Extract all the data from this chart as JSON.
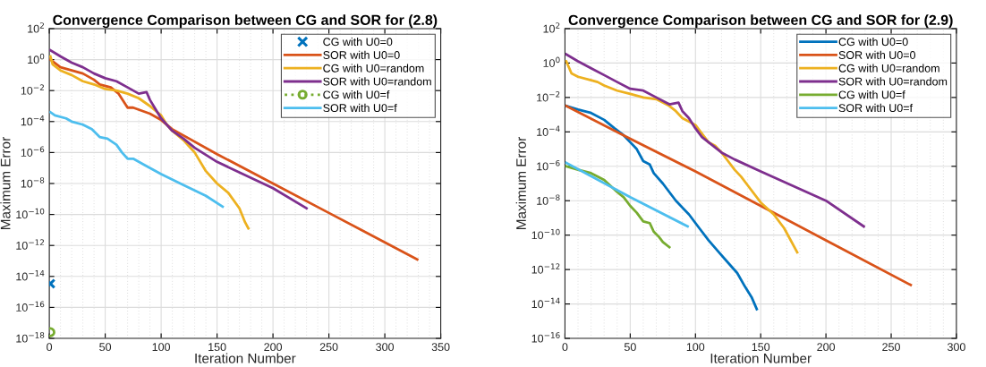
{
  "chart_data": [
    {
      "type": "line",
      "title": "Convergence Comparison between CG and SOR for (2.8)",
      "xlabel": "Iteration Number",
      "ylabel": "Maximum Error",
      "log": "y",
      "grid": true,
      "legend": "top right",
      "xlim": [
        0,
        350
      ],
      "xticks": [
        0,
        50,
        100,
        150,
        200,
        250,
        300,
        350
      ],
      "ylim": [
        1e-18,
        100
      ],
      "yticks": [
        {
          "value": 1e-18,
          "label": "10$^{−18}$"
        },
        {
          "value": 1e-16,
          "label": "10$^{−16}$"
        },
        {
          "value": 1e-14,
          "label": "10$^{−14}$"
        },
        {
          "value": 1e-12,
          "label": "10$^{−12}$"
        },
        {
          "value": 1e-10,
          "label": "10$^{−10}$"
        },
        {
          "value": 1e-08,
          "label": "10$^{−8}$"
        },
        {
          "value": 1e-06,
          "label": "10$^{−6}$"
        },
        {
          "value": 0.0001,
          "label": "10$^{−4}$"
        },
        {
          "value": 0.01,
          "label": "10$^{−2}$"
        },
        {
          "value": 1,
          "label": "10$^{0}$"
        },
        {
          "value": 100,
          "label": "10$^{2}$"
        }
      ],
      "series": [
        {
          "name": "CG with U0=0",
          "type": "scatter",
          "marker": "cross",
          "color": "#0072bd",
          "x": [
            1
          ],
          "values": [
            3.4e-15
          ]
        },
        {
          "name": "SOR with U0=0",
          "color": "#d95319",
          "x": [
            1,
            10,
            20,
            30,
            40,
            45,
            55,
            62,
            70,
            75,
            90,
            100,
            110,
            150,
            200,
            250,
            300,
            329
          ],
          "values": [
            1,
            0.32,
            0.2,
            0.126,
            0.05,
            0.025,
            0.016,
            0.0063,
            0.00079,
            0.00079,
            0.00032,
            0.000126,
            3.2e-05,
            7.9e-07,
            1e-08,
            1.26e-10,
            1.6e-12,
            1.26e-13
          ]
        },
        {
          "name": "CG with U0=random",
          "color": "#edb120",
          "x": [
            1,
            3,
            10,
            20,
            30,
            40,
            50,
            60,
            70,
            80,
            90,
            100,
            105,
            110,
            120,
            125,
            130,
            140,
            150,
            160,
            170,
            175,
            178
          ],
          "values": [
            1.6,
            0.5,
            0.2,
            0.1,
            0.04,
            0.025,
            0.0126,
            0.01,
            0.0063,
            0.0032,
            0.001,
            0.00025,
            6.3e-05,
            2.5e-05,
            6.3e-06,
            2.5e-06,
            1e-06,
            6.3e-08,
            1e-08,
            2.5e-09,
            2.5e-10,
            3.2e-11,
            1.26e-11
          ]
        },
        {
          "name": "SOR with U0=random",
          "color": "#7e2f8e",
          "x": [
            1,
            10,
            20,
            30,
            40,
            50,
            60,
            70,
            80,
            87,
            90,
            95,
            100,
            105,
            110,
            120,
            130,
            150,
            200,
            230
          ],
          "values": [
            4.0,
            1.6,
            0.63,
            0.32,
            0.126,
            0.063,
            0.04,
            0.016,
            0.0063,
            0.0079,
            0.0025,
            0.00063,
            0.00016,
            6.3e-05,
            2.5e-05,
            7.9e-06,
            2e-06,
            2.5e-07,
            5e-09,
            2.5e-10
          ]
        },
        {
          "name": "CG with U0=f",
          "marker": "circle",
          "line_style": "dotted",
          "color": "#77ac30",
          "x": [
            1
          ],
          "values": [
            2.5e-18
          ]
        },
        {
          "name": "SOR with U0=f",
          "color": "#4dbeee",
          "x": [
            1,
            5,
            15,
            20,
            30,
            38,
            45,
            52,
            60,
            65,
            70,
            75,
            85,
            100,
            120,
            140,
            155
          ],
          "values": [
            0.0004,
            0.00025,
            0.00016,
            0.0001,
            6.3e-05,
            3.2e-05,
            1e-05,
            7.9e-06,
            3.2e-06,
            1e-06,
            4e-07,
            4e-07,
            1.6e-07,
            4e-08,
            7.9e-09,
            1.6e-09,
            3.2e-10
          ]
        }
      ]
    },
    {
      "type": "line",
      "title": "Convergence Comparison between CG and SOR for (2.9)",
      "xlabel": "Iteration Number",
      "ylabel": "Maximum Error",
      "log": "y",
      "grid": true,
      "legend": "top right",
      "xlim": [
        0,
        300
      ],
      "xticks": [
        0,
        50,
        100,
        150,
        200,
        250,
        300
      ],
      "ylim": [
        1e-16,
        100
      ],
      "yticks": [
        {
          "value": 1e-16,
          "label": "10$^{−16}$"
        },
        {
          "value": 1e-14,
          "label": "10$^{−14}$"
        },
        {
          "value": 1e-12,
          "label": "10$^{−12}$"
        },
        {
          "value": 1e-10,
          "label": "10$^{−10}$"
        },
        {
          "value": 1e-08,
          "label": "10$^{−8}$"
        },
        {
          "value": 1e-06,
          "label": "10$^{−6}$"
        },
        {
          "value": 0.0001,
          "label": "10$^{−4}$"
        },
        {
          "value": 0.01,
          "label": "10$^{−2}$"
        },
        {
          "value": 1,
          "label": "10$^{0}$"
        },
        {
          "value": 100,
          "label": "10$^{2}$"
        }
      ],
      "series": [
        {
          "name": "CG with U0=0",
          "color": "#0072bd",
          "x": [
            1,
            10,
            20,
            30,
            38,
            45,
            50,
            55,
            60,
            65,
            68,
            75,
            85,
            95,
            103,
            110,
            118,
            125,
            132,
            138,
            143,
            147
          ],
          "values": [
            0.0032,
            0.002,
            0.00126,
            0.0005,
            0.00016,
            6.3e-05,
            2.5e-05,
            1e-05,
            2e-06,
            1.26e-06,
            4e-07,
            1e-07,
            1e-08,
            1.6e-09,
            2.5e-10,
            5e-11,
            1e-11,
            2.5e-12,
            6.3e-13,
            1e-13,
            2.5e-14,
            5e-15
          ]
        },
        {
          "name": "SOR with U0=0",
          "color": "#d95319",
          "x": [
            1,
            50,
            100,
            150,
            200,
            265
          ],
          "values": [
            0.0032,
            4e-05,
            5e-07,
            5e-09,
            5e-11,
            1.26e-13
          ]
        },
        {
          "name": "CG with U0=random",
          "color": "#edb120",
          "x": [
            1,
            5,
            10,
            20,
            25,
            30,
            40,
            50,
            60,
            70,
            80,
            85,
            90,
            95,
            100,
            105,
            110,
            115,
            120,
            125,
            130,
            135,
            140,
            150,
            160,
            168,
            178
          ],
          "values": [
            1.26,
            0.25,
            0.16,
            0.1,
            0.079,
            0.05,
            0.025,
            0.016,
            0.01,
            0.0079,
            0.0032,
            0.0016,
            0.00063,
            0.0004,
            0.00025,
            7.9e-05,
            2.5e-05,
            1.6e-05,
            6.3e-06,
            2e-06,
            6.3e-07,
            2.5e-07,
            7.9e-08,
            7.9e-09,
            1.6e-09,
            2.5e-10,
            1e-11
          ]
        },
        {
          "name": "SOR with U0=random",
          "color": "#7e2f8e",
          "x": [
            1,
            10,
            20,
            30,
            40,
            50,
            60,
            70,
            80,
            87,
            90,
            95,
            100,
            105,
            110,
            120,
            130,
            150,
            200,
            229
          ],
          "values": [
            3.2,
            1.26,
            0.5,
            0.2,
            0.079,
            0.032,
            0.025,
            0.01,
            0.004,
            0.005,
            0.0016,
            0.00063,
            0.00016,
            5e-05,
            2.5e-05,
            6.3e-06,
            2.5e-06,
            5e-07,
            1e-08,
            3.2e-10
          ]
        },
        {
          "name": "CG with U0=f",
          "color": "#77ac30",
          "x": [
            1,
            10,
            20,
            30,
            40,
            45,
            50,
            55,
            60,
            65,
            68,
            72,
            75,
            80
          ],
          "values": [
            1e-06,
            6.3e-07,
            4e-07,
            1.6e-07,
            3.2e-08,
            1.6e-08,
            5e-09,
            2e-09,
            6.3e-10,
            5e-10,
            1.6e-10,
            7.9e-11,
            4e-11,
            2e-11
          ]
        },
        {
          "name": "SOR with U0=f",
          "color": "#4dbeee",
          "x": [
            1,
            50,
            94
          ],
          "values": [
            1.6e-06,
            1.6e-08,
            3.2e-10
          ]
        }
      ]
    }
  ]
}
